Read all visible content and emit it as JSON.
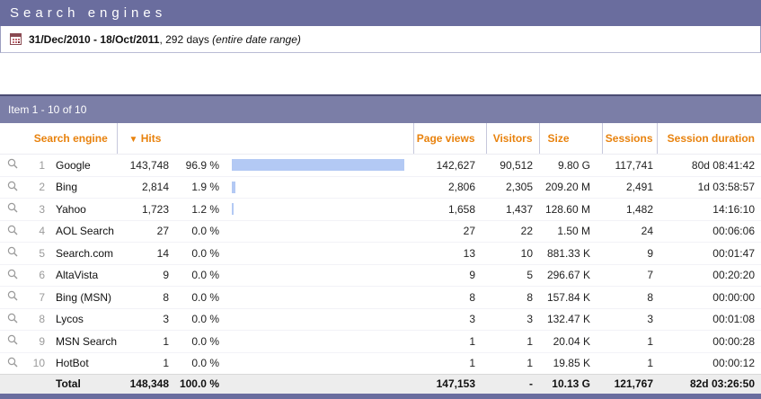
{
  "page": {
    "title": "Search engines"
  },
  "date_panel": {
    "range": "31/Dec/2010 - 18/Oct/2011",
    "suffix": ", 292 days ",
    "note": "(entire date range)"
  },
  "pagination": {
    "text": "Item 1 - 10 of 10"
  },
  "table": {
    "sort_indicator": "▼",
    "columns": {
      "engine": "Search engine",
      "hits": "Hits",
      "page_views": "Page views",
      "visitors": "Visitors",
      "size": "Size",
      "sessions": "Sessions",
      "session_duration": "Session duration"
    },
    "rows": [
      {
        "rank": "1",
        "engine": "Google",
        "hits": "143,748",
        "hits_pct": "96.9 %",
        "pct_value": 96.9,
        "page_views": "142,627",
        "visitors": "90,512",
        "size": "9.80 G",
        "sessions": "117,741",
        "session_duration": "80d 08:41:42"
      },
      {
        "rank": "2",
        "engine": "Bing",
        "hits": "2,814",
        "hits_pct": "1.9 %",
        "pct_value": 1.9,
        "page_views": "2,806",
        "visitors": "2,305",
        "size": "209.20 M",
        "sessions": "2,491",
        "session_duration": "1d 03:58:57"
      },
      {
        "rank": "3",
        "engine": "Yahoo",
        "hits": "1,723",
        "hits_pct": "1.2 %",
        "pct_value": 1.2,
        "page_views": "1,658",
        "visitors": "1,437",
        "size": "128.60 M",
        "sessions": "1,482",
        "session_duration": "14:16:10"
      },
      {
        "rank": "4",
        "engine": "AOL Search",
        "hits": "27",
        "hits_pct": "0.0 %",
        "pct_value": 0,
        "page_views": "27",
        "visitors": "22",
        "size": "1.50 M",
        "sessions": "24",
        "session_duration": "00:06:06"
      },
      {
        "rank": "5",
        "engine": "Search.com",
        "hits": "14",
        "hits_pct": "0.0 %",
        "pct_value": 0,
        "page_views": "13",
        "visitors": "10",
        "size": "881.33 K",
        "sessions": "9",
        "session_duration": "00:01:47"
      },
      {
        "rank": "6",
        "engine": "AltaVista",
        "hits": "9",
        "hits_pct": "0.0 %",
        "pct_value": 0,
        "page_views": "9",
        "visitors": "5",
        "size": "296.67 K",
        "sessions": "7",
        "session_duration": "00:20:20"
      },
      {
        "rank": "7",
        "engine": "Bing (MSN)",
        "hits": "8",
        "hits_pct": "0.0 %",
        "pct_value": 0,
        "page_views": "8",
        "visitors": "8",
        "size": "157.84 K",
        "sessions": "8",
        "session_duration": "00:00:00"
      },
      {
        "rank": "8",
        "engine": "Lycos",
        "hits": "3",
        "hits_pct": "0.0 %",
        "pct_value": 0,
        "page_views": "3",
        "visitors": "3",
        "size": "132.47 K",
        "sessions": "3",
        "session_duration": "00:01:08"
      },
      {
        "rank": "9",
        "engine": "MSN Search",
        "hits": "1",
        "hits_pct": "0.0 %",
        "pct_value": 0,
        "page_views": "1",
        "visitors": "1",
        "size": "20.04 K",
        "sessions": "1",
        "session_duration": "00:00:28"
      },
      {
        "rank": "10",
        "engine": "HotBot",
        "hits": "1",
        "hits_pct": "0.0 %",
        "pct_value": 0,
        "page_views": "1",
        "visitors": "1",
        "size": "19.85 K",
        "sessions": "1",
        "session_duration": "00:00:12"
      }
    ],
    "total": {
      "label": "Total",
      "hits": "148,348",
      "hits_pct": "100.0 %",
      "page_views": "147,153",
      "visitors": "-",
      "size": "10.13 G",
      "sessions": "121,767",
      "session_duration": "82d 03:26:50"
    }
  },
  "colors": {
    "title_bar": "#6A6D9E",
    "section_bar": "#7B7EA7",
    "section_bar_border": "#4B4D73",
    "accent_orange": "#E8820D",
    "bar_fill": "#B3C9F4",
    "total_row_bg": "#EDEDED",
    "footer_bar": "#6A6D9E"
  },
  "icons": {
    "calendar": "calendar-icon",
    "magnifier": "magnifier-icon",
    "sort_desc": "sort-desc-icon"
  }
}
